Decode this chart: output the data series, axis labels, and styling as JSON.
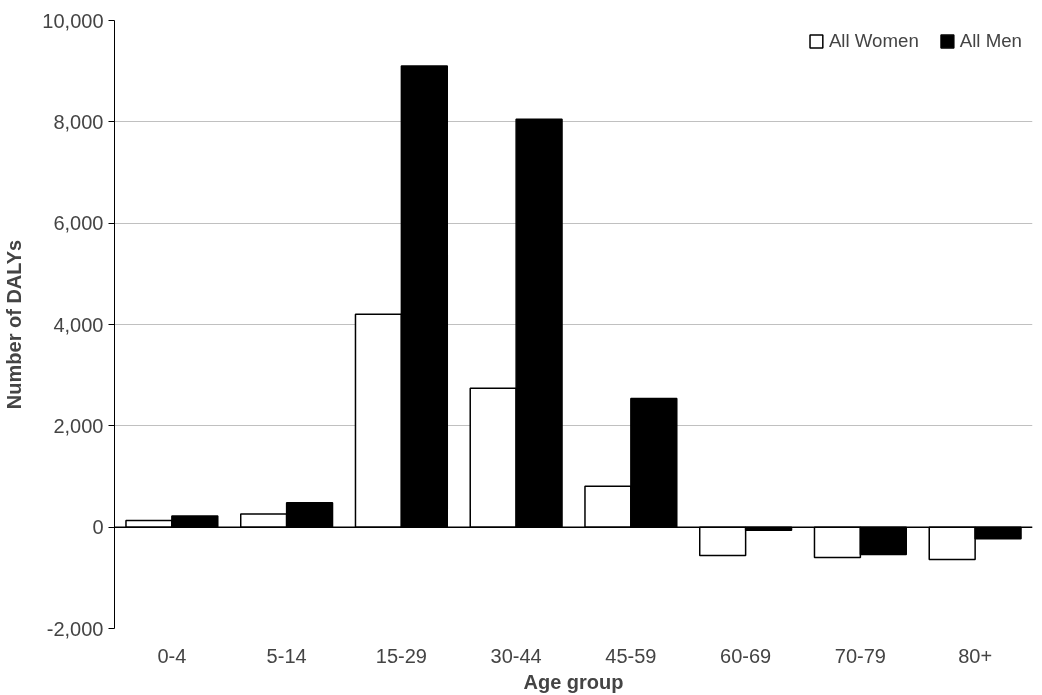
{
  "chart_data": {
    "type": "bar",
    "xlabel": "Age group",
    "ylabel": "Number of DALYs",
    "categories": [
      "0-4",
      "5-14",
      "15-29",
      "30-44",
      "45-59",
      "60-69",
      "70-79",
      "80+"
    ],
    "series": [
      {
        "name": "All Women",
        "color": "#ffffff",
        "values": [
          130,
          260,
          4200,
          2740,
          810,
          -560,
          -600,
          -640
        ]
      },
      {
        "name": "All Men",
        "color": "#000000",
        "values": [
          220,
          480,
          9100,
          8050,
          2540,
          -60,
          -540,
          -230
        ]
      }
    ],
    "ylim": [
      -2000,
      10000
    ],
    "yticks": [
      {
        "value": -2000,
        "label": "-2,000"
      },
      0,
      {
        "value": 2000,
        "label": "2,000"
      },
      {
        "value": 4000,
        "label": "4,000"
      },
      {
        "value": 6000,
        "label": "6,000"
      },
      {
        "value": 8000,
        "label": "8,000"
      },
      {
        "value": 10000,
        "label": "10,000"
      }
    ],
    "grid": "y",
    "legend": "top right"
  }
}
